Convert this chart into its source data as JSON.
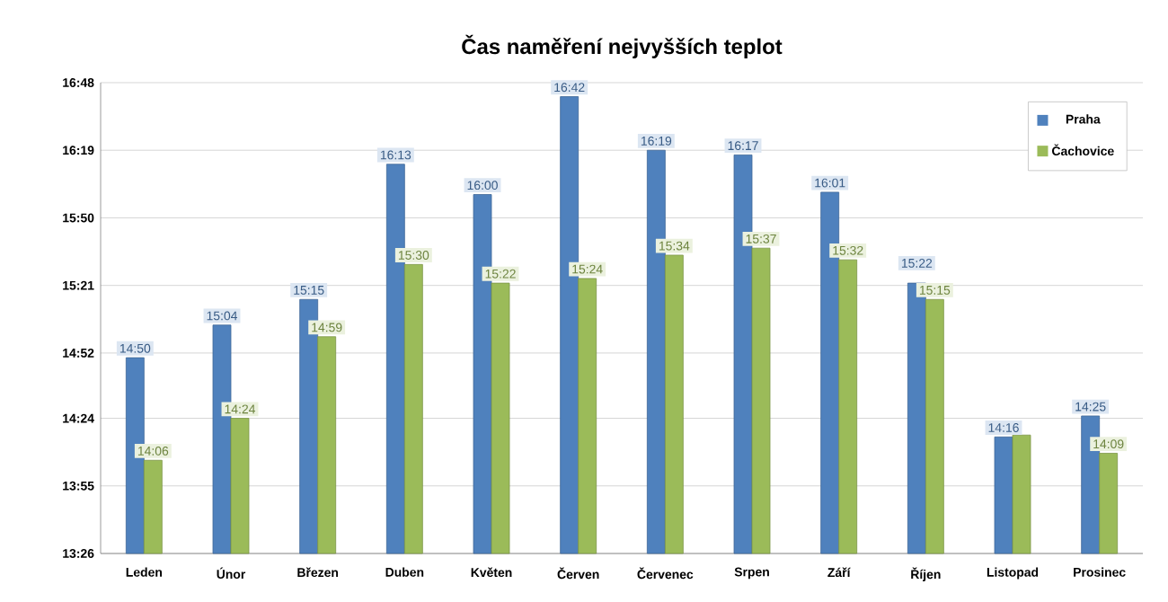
{
  "chart_data": {
    "type": "bar",
    "title": "Čas naměření nejvyšších teplot",
    "categories": [
      "Leden",
      "Únor",
      "Březen",
      "Duben",
      "Květen",
      "Červen",
      "Červenec",
      "Srpen",
      "Září",
      "Říjen",
      "Listopad",
      "Prosinec"
    ],
    "series": [
      {
        "name": "Praha",
        "color": "#4f81bd",
        "values": [
          14.8333,
          15.0667,
          15.25,
          16.2167,
          16.0,
          16.7,
          16.3167,
          16.2833,
          16.0167,
          15.3667,
          14.2667,
          14.4167
        ],
        "value_labels": [
          "14:50",
          "15:04",
          "15:15",
          "16:13",
          "16:00",
          "16:42",
          "16:19",
          "16:17",
          "16:01",
          "15:22",
          "14:16",
          "14:25"
        ]
      },
      {
        "name": "Čachovice",
        "color": "#9bbb59",
        "values": [
          14.1,
          14.4,
          14.9833,
          15.5,
          15.3667,
          15.4,
          15.5667,
          15.6167,
          15.5333,
          15.25,
          14.28,
          14.15
        ],
        "value_labels": [
          "14:06",
          "14:24",
          "14:59",
          "15:30",
          "15:22",
          "15:24",
          "15:34",
          "15:37",
          "15:32",
          "15:15",
          null,
          "14:09"
        ]
      }
    ],
    "ylim": [
      13.4333,
      16.8
    ],
    "yticks": [
      {
        "value": 13.4333,
        "label": "13:26"
      },
      {
        "value": 13.9167,
        "label": "13:55"
      },
      {
        "value": 14.4,
        "label": "14:24"
      },
      {
        "value": 14.8667,
        "label": "14:52"
      },
      {
        "value": 15.35,
        "label": "15:21"
      },
      {
        "value": 15.8333,
        "label": "15:50"
      },
      {
        "value": 16.3167,
        "label": "16:19"
      },
      {
        "value": 16.8,
        "label": "16:48"
      }
    ],
    "grid": "y",
    "legend": "top right"
  }
}
